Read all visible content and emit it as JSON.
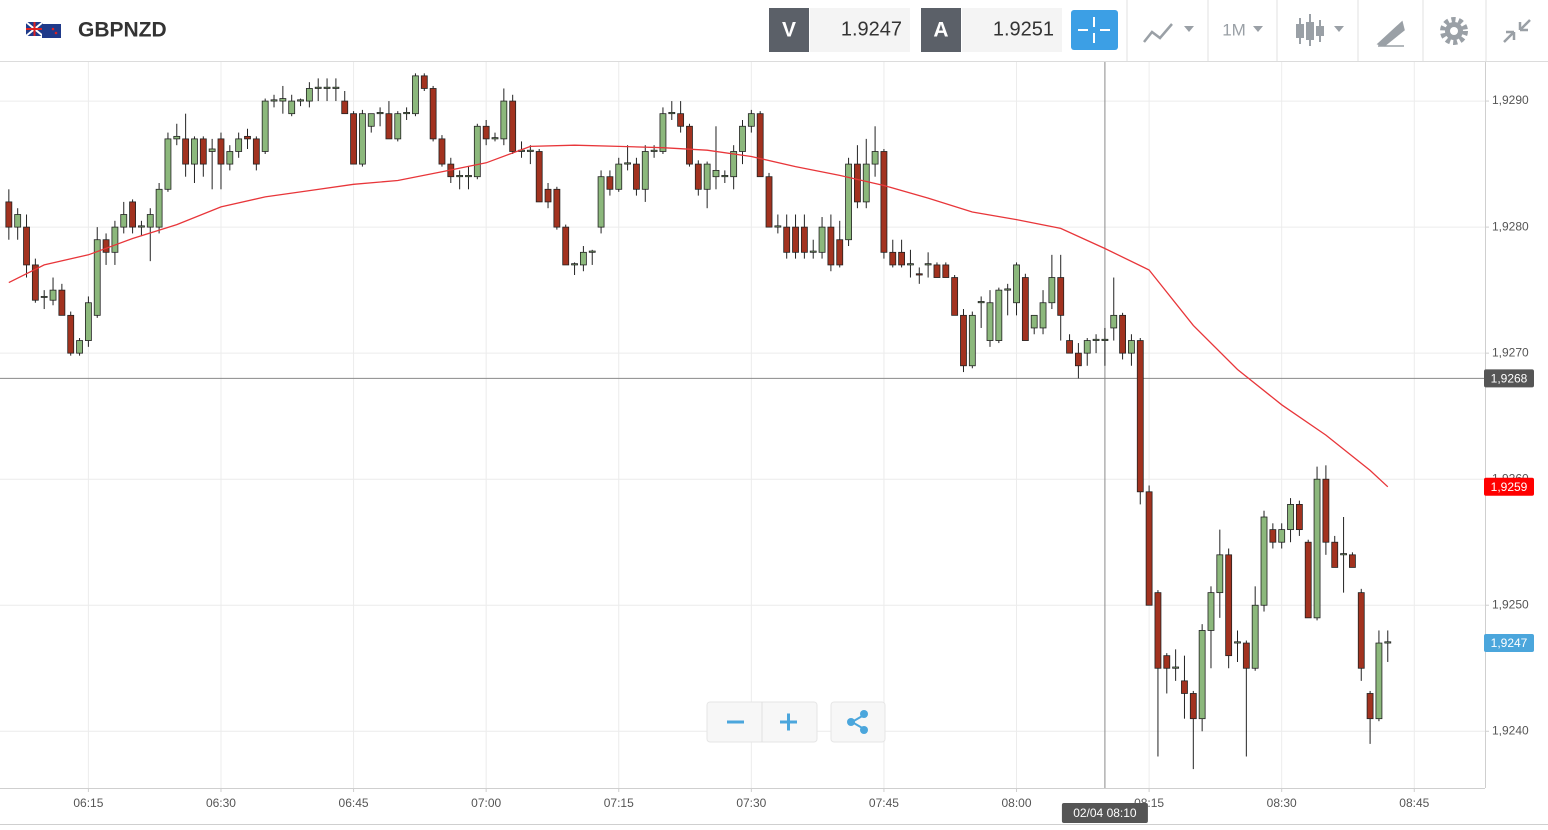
{
  "header": {
    "symbol": "GBPNZD",
    "bid_label": "V",
    "bid": "1.9247",
    "ask_label": "A",
    "ask": "1.9251",
    "timeframe": "1M"
  },
  "chart_data": {
    "type": "candlestick",
    "x": [
      "06:06",
      "06:07",
      "06:08",
      "06:09",
      "06:10",
      "06:11",
      "06:12",
      "06:13",
      "06:14",
      "06:15",
      "06:16",
      "06:17",
      "06:18",
      "06:19",
      "06:20",
      "06:21",
      "06:22",
      "06:23",
      "06:24",
      "06:25",
      "06:26",
      "06:27",
      "06:28",
      "06:29",
      "06:30",
      "06:31",
      "06:32",
      "06:33",
      "06:34",
      "06:35",
      "06:36",
      "06:37",
      "06:38",
      "06:39",
      "06:40",
      "06:41",
      "06:42",
      "06:43",
      "06:44",
      "06:45",
      "06:46",
      "06:47",
      "06:48",
      "06:49",
      "06:50",
      "06:51",
      "06:52",
      "06:53",
      "06:54",
      "06:55",
      "06:56",
      "06:57",
      "06:58",
      "06:59",
      "07:00",
      "07:01",
      "07:02",
      "07:03",
      "07:04",
      "07:05",
      "07:06",
      "07:07",
      "07:08",
      "07:09",
      "07:10",
      "07:11",
      "07:12",
      "07:13",
      "07:14",
      "07:15",
      "07:16",
      "07:17",
      "07:18",
      "07:19",
      "07:20",
      "07:21",
      "07:22",
      "07:23",
      "07:24",
      "07:25",
      "07:26",
      "07:27",
      "07:28",
      "07:29",
      "07:30",
      "07:31",
      "07:32",
      "07:33",
      "07:34",
      "07:35",
      "07:36",
      "07:37",
      "07:38",
      "07:39",
      "07:40",
      "07:41",
      "07:42",
      "07:43",
      "07:44",
      "07:45",
      "07:46",
      "07:47",
      "07:48",
      "07:49",
      "07:50",
      "07:51",
      "07:52",
      "07:53",
      "07:54",
      "07:55",
      "07:56",
      "07:57",
      "07:58",
      "07:59",
      "08:00",
      "08:01",
      "08:02",
      "08:03",
      "08:04",
      "08:05",
      "08:06",
      "08:07",
      "08:08",
      "08:09",
      "08:10",
      "08:11",
      "08:12",
      "08:13",
      "08:14",
      "08:15",
      "08:16",
      "08:17",
      "08:18",
      "08:19",
      "08:20",
      "08:21",
      "08:22",
      "08:23",
      "08:24",
      "08:25",
      "08:26",
      "08:27",
      "08:28",
      "08:29",
      "08:30",
      "08:31",
      "08:32",
      "08:33",
      "08:34",
      "08:35",
      "08:36",
      "08:37",
      "08:38",
      "08:39",
      "08:40",
      "08:41",
      "08:42"
    ],
    "open": [
      1.9282,
      1.928,
      1.928,
      1.9277,
      1.92745,
      1.92742,
      1.9275,
      1.9273,
      1.927,
      1.9271,
      1.9273,
      1.9279,
      1.9278,
      1.928,
      1.9282,
      1.928,
      1.928,
      1.928,
      1.9283,
      1.9287,
      1.9287,
      1.9285,
      1.9287,
      1.9286,
      1.9287,
      1.9285,
      1.9286,
      1.92872,
      1.9287,
      1.9286,
      1.929,
      1.929,
      1.9289,
      1.929,
      1.929,
      1.9291,
      1.9291,
      1.9291,
      1.929,
      1.9289,
      1.9285,
      1.9288,
      1.9289,
      1.9289,
      1.9287,
      1.9289,
      1.9289,
      1.9292,
      1.9291,
      1.9287,
      1.9285,
      1.9284,
      1.9284,
      1.9284,
      1.9288,
      1.9287,
      1.9287,
      1.929,
      1.9286,
      1.9286,
      1.9286,
      1.9283,
      1.9283,
      1.928,
      1.9277,
      1.9277,
      1.9278,
      1.928,
      1.9284,
      1.9283,
      1.9285,
      1.9285,
      1.9283,
      1.9286,
      1.9286,
      1.9289,
      1.9289,
      1.9288,
      1.9285,
      1.9283,
      1.9284,
      1.9284,
      1.9284,
      1.9286,
      1.9288,
      1.9289,
      1.9284,
      1.928,
      1.928,
      1.928,
      1.928,
      1.9278,
      1.9278,
      1.928,
      1.9279,
      1.9279,
      1.9285,
      1.9282,
      1.9285,
      1.9286,
      1.9278,
      1.9278,
      1.9277,
      1.92763,
      1.9277,
      1.9277,
      1.9277,
      1.9276,
      1.9273,
      1.9269,
      1.9274,
      1.9271,
      1.9271,
      1.9275,
      1.9274,
      1.9276,
      1.9272,
      1.9272,
      1.9274,
      1.9276,
      1.9271,
      1.927,
      1.927,
      1.9271,
      1.9271,
      1.9272,
      1.9273,
      1.927,
      1.9271,
      1.9259,
      1.9251,
      1.9246,
      1.9245,
      1.9244,
      1.9243,
      1.9241,
      1.9248,
      1.9251,
      1.9254,
      1.9247,
      1.9247,
      1.9245,
      1.925,
      1.9256,
      1.9255,
      1.9256,
      1.9258,
      1.9255,
      1.9249,
      1.926,
      1.9255,
      1.9254,
      1.9254,
      1.9251,
      1.9243,
      1.9241,
      1.9247
    ],
    "high": [
      1.9283,
      1.92815,
      1.9281,
      1.92775,
      1.9275,
      1.9276,
      1.92755,
      1.92733,
      1.92712,
      1.92745,
      1.928,
      1.92795,
      1.92805,
      1.9282,
      1.92822,
      1.92805,
      1.92815,
      1.92835,
      1.92875,
      1.92882,
      1.9289,
      1.92872,
      1.92872,
      1.9287,
      1.92875,
      1.92865,
      1.92875,
      1.92878,
      1.92872,
      1.92902,
      1.92905,
      1.92912,
      1.92905,
      1.92902,
      1.92915,
      1.92918,
      1.92918,
      1.92918,
      1.92908,
      1.92892,
      1.92893,
      1.9289,
      1.92895,
      1.929,
      1.92892,
      1.92895,
      1.92922,
      1.92922,
      1.92912,
      1.92873,
      1.92855,
      1.92845,
      1.92848,
      1.92882,
      1.92885,
      1.92875,
      1.9291,
      1.92905,
      1.92868,
      1.92865,
      1.92862,
      1.92835,
      1.92832,
      1.92802,
      1.92772,
      1.92785,
      1.92782,
      1.92845,
      1.92845,
      1.92855,
      1.92865,
      1.92855,
      1.92865,
      1.92865,
      1.92895,
      1.929,
      1.929,
      1.92882,
      1.92853,
      1.92852,
      1.9288,
      1.92845,
      1.92865,
      1.92885,
      1.92893,
      1.92892,
      1.92843,
      1.9281,
      1.9281,
      1.9281,
      1.9281,
      1.9279,
      1.92808,
      1.9281,
      1.92805,
      1.92855,
      1.92865,
      1.9287,
      1.9288,
      1.92862,
      1.9279,
      1.9279,
      1.92782,
      1.92768,
      1.9278,
      1.92772,
      1.92772,
      1.92762,
      1.92735,
      1.92733,
      1.92745,
      1.9275,
      1.92752,
      1.92755,
      1.92772,
      1.92763,
      1.9273,
      1.9275,
      1.92778,
      1.92778,
      1.92715,
      1.92708,
      1.92712,
      1.92715,
      1.9272,
      1.9276,
      1.92732,
      1.92715,
      1.92712,
      1.92595,
      1.92512,
      1.92462,
      1.92465,
      1.9246,
      1.92432,
      1.92485,
      1.92515,
      1.9256,
      1.92545,
      1.9248,
      1.92472,
      1.92515,
      1.92575,
      1.92565,
      1.92565,
      1.92585,
      1.92583,
      1.92552,
      1.9261,
      1.92611,
      1.92555,
      1.9257,
      1.92542,
      1.92513,
      1.92432,
      1.9248,
      1.9248
    ],
    "low": [
      1.9279,
      1.9279,
      1.9276,
      1.9274,
      1.92735,
      1.92738,
      1.9273,
      1.92698,
      1.92698,
      1.92705,
      1.92728,
      1.9277,
      1.9277,
      1.92795,
      1.92795,
      1.92793,
      1.92773,
      1.92795,
      1.92828,
      1.92865,
      1.9284,
      1.92835,
      1.9284,
      1.9283,
      1.9283,
      1.92845,
      1.92855,
      1.92862,
      1.92845,
      1.92858,
      1.92895,
      1.9289,
      1.92888,
      1.92896,
      1.92895,
      1.929,
      1.929,
      1.929,
      1.92895,
      1.9285,
      1.92848,
      1.92875,
      1.9288,
      1.9287,
      1.92868,
      1.92885,
      1.92888,
      1.92908,
      1.92868,
      1.92848,
      1.92835,
      1.9283,
      1.9283,
      1.92838,
      1.92865,
      1.92868,
      1.92865,
      1.92858,
      1.92855,
      1.9285,
      1.9282,
      1.92815,
      1.92798,
      1.9277,
      1.92762,
      1.92765,
      1.9277,
      1.92795,
      1.92825,
      1.92828,
      1.92845,
      1.92825,
      1.9282,
      1.92855,
      1.92858,
      1.92885,
      1.92875,
      1.92848,
      1.92825,
      1.92815,
      1.9283,
      1.92835,
      1.9283,
      1.9285,
      1.92875,
      1.9284,
      1.928,
      1.92795,
      1.92775,
      1.92775,
      1.92775,
      1.92775,
      1.92775,
      1.92765,
      1.92768,
      1.92785,
      1.92815,
      1.92815,
      1.9284,
      1.92775,
      1.92768,
      1.92768,
      1.9276,
      1.92755,
      1.9276,
      1.9276,
      1.9276,
      1.9273,
      1.92685,
      1.92688,
      1.9272,
      1.92705,
      1.92708,
      1.9273,
      1.9273,
      1.9271,
      1.92715,
      1.92715,
      1.92735,
      1.9271,
      1.927,
      1.9268,
      1.9269,
      1.927,
      1.9269,
      1.9271,
      1.92695,
      1.9269,
      1.9258,
      1.925,
      1.9238,
      1.9243,
      1.9244,
      1.9241,
      1.9237,
      1.924,
      1.9245,
      1.9249,
      1.9245,
      1.92455,
      1.9238,
      1.92448,
      1.92495,
      1.92545,
      1.92545,
      1.9255,
      1.92555,
      1.9249,
      1.92488,
      1.9254,
      1.9253,
      1.9251,
      1.9253,
      1.9244,
      1.9239,
      1.92408,
      1.92455
    ],
    "close": [
      1.928,
      1.9281,
      1.9277,
      1.92742,
      1.92745,
      1.9275,
      1.9273,
      1.927,
      1.9271,
      1.9274,
      1.9279,
      1.9278,
      1.928,
      1.9281,
      1.928,
      1.92801,
      1.9281,
      1.9283,
      1.9287,
      1.92872,
      1.9285,
      1.9287,
      1.9285,
      1.92862,
      1.9285,
      1.9286,
      1.9287,
      1.9287,
      1.9285,
      1.929,
      1.92901,
      1.92902,
      1.929,
      1.92901,
      1.9291,
      1.92911,
      1.92911,
      1.92911,
      1.9289,
      1.9285,
      1.9289,
      1.9289,
      1.92891,
      1.9287,
      1.9289,
      1.92891,
      1.9292,
      1.9291,
      1.9287,
      1.9285,
      1.9284,
      1.92841,
      1.92841,
      1.9288,
      1.9287,
      1.92871,
      1.929,
      1.9286,
      1.92861,
      1.92861,
      1.9282,
      1.9282,
      1.928,
      1.9277,
      1.92771,
      1.9278,
      1.92781,
      1.9284,
      1.9283,
      1.9285,
      1.92851,
      1.9283,
      1.9286,
      1.92861,
      1.9289,
      1.92891,
      1.9288,
      1.9285,
      1.9283,
      1.9285,
      1.92845,
      1.92841,
      1.9286,
      1.9288,
      1.9289,
      1.9284,
      1.928,
      1.92801,
      1.9278,
      1.9278,
      1.9278,
      1.92781,
      1.928,
      1.9277,
      1.9277,
      1.9285,
      1.9282,
      1.9285,
      1.9286,
      1.9278,
      1.9277,
      1.9277,
      1.92771,
      1.92762,
      1.92771,
      1.9276,
      1.9276,
      1.9273,
      1.9269,
      1.9273,
      1.92741,
      1.9274,
      1.9275,
      1.92751,
      1.9277,
      1.9271,
      1.9273,
      1.9274,
      1.9276,
      1.9273,
      1.927,
      1.9269,
      1.9271,
      1.92711,
      1.92711,
      1.9273,
      1.927,
      1.9271,
      1.9259,
      1.925,
      1.9245,
      1.9245,
      1.92451,
      1.9243,
      1.9241,
      1.9248,
      1.9251,
      1.9254,
      1.9246,
      1.92471,
      1.9245,
      1.925,
      1.9257,
      1.9255,
      1.9256,
      1.9258,
      1.9256,
      1.9249,
      1.926,
      1.9255,
      1.9253,
      1.92541,
      1.9253,
      1.9245,
      1.9241,
      1.9247,
      1.92471
    ],
    "up_color": "#8cb87c",
    "down_color": "#a2321f",
    "ma": {
      "color": "#e8363a",
      "x": [
        "06:06",
        "06:10",
        "06:15",
        "06:20",
        "06:25",
        "06:30",
        "06:35",
        "06:40",
        "06:45",
        "06:50",
        "06:55",
        "07:00",
        "07:05",
        "07:10",
        "07:15",
        "07:20",
        "07:25",
        "07:30",
        "07:35",
        "07:40",
        "07:45",
        "07:50",
        "07:55",
        "08:00",
        "08:05",
        "08:10",
        "08:15",
        "08:20",
        "08:25",
        "08:30",
        "08:35",
        "08:40",
        "08:42"
      ],
      "values": [
        1.92756,
        1.9277,
        1.92778,
        1.92791,
        1.92802,
        1.92816,
        1.92824,
        1.92829,
        1.92834,
        1.92837,
        1.92844,
        1.92851,
        1.92864,
        1.92865,
        1.92864,
        1.92863,
        1.92861,
        1.92856,
        1.92848,
        1.92841,
        1.92833,
        1.92823,
        1.92812,
        1.92806,
        1.92799,
        1.92783,
        1.92766,
        1.92722,
        1.92687,
        1.92659,
        1.92635,
        1.92607,
        1.92594
      ]
    },
    "xlim": [
      "06:05",
      "08:53"
    ],
    "xticks": [
      "06:15",
      "06:30",
      "06:45",
      "07:00",
      "07:15",
      "07:30",
      "07:45",
      "08:00",
      "08:15",
      "08:30",
      "08:45"
    ],
    "ylim": [
      1.92355,
      1.92931
    ],
    "yticks": [
      {
        "value": 1.924,
        "label": "1,9240"
      },
      {
        "value": 1.925,
        "label": "1,9250"
      },
      {
        "value": 1.926,
        "label": "1,9260"
      },
      {
        "value": 1.927,
        "label": "1,9270"
      },
      {
        "value": 1.928,
        "label": "1,9280"
      },
      {
        "value": 1.929,
        "label": "1,9290"
      }
    ],
    "grid": true,
    "crosshair": {
      "x": "08:10",
      "x_label": "02/04 08:10",
      "y": {
        "value": 1.9268,
        "label": "1,9268"
      },
      "color": "#555555"
    },
    "price_markers": [
      {
        "value": 1.92594,
        "label": "1,9259",
        "color": "#ff0000"
      },
      {
        "value": 1.9247,
        "label": "1,9247",
        "color": "#4ba6dc"
      }
    ]
  }
}
